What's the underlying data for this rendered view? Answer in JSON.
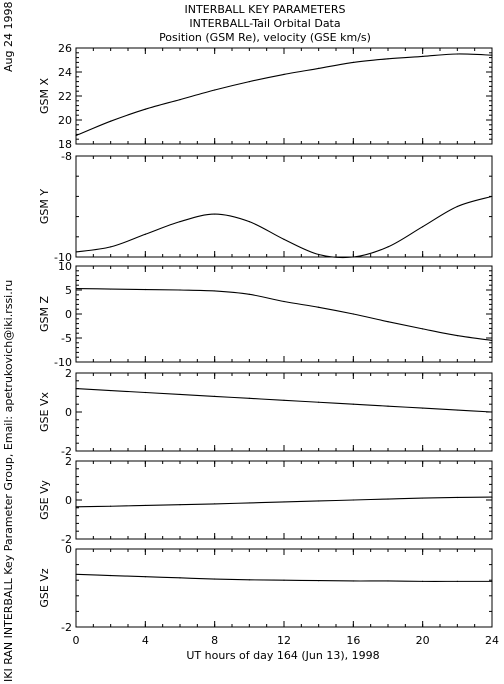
{
  "header": {
    "line1": "INTERBALL KEY PARAMETERS",
    "line2": "INTERBALL-Tail Orbital Data",
    "line3": "Position (GSM Re), velocity (GSE km/s)"
  },
  "side": {
    "date": "Aug 24 1998",
    "credit": "IKI RAN INTERBALL Key Parameter Group, Email: apetrukovich@iki.rssi.ru"
  },
  "chart_data": {
    "type": "line",
    "x": [
      0,
      2,
      4,
      6,
      8,
      10,
      12,
      14,
      16,
      18,
      20,
      22,
      24
    ],
    "xlim": [
      0,
      24
    ],
    "xticks": [
      "0",
      "4",
      "8",
      "12",
      "16",
      "20",
      "24"
    ],
    "xlabel": "UT hours of day 164 (Jun 13), 1998",
    "panels": [
      {
        "ylabel": "GSM X",
        "ylim": [
          18,
          26
        ],
        "yticks": [
          "18",
          "20",
          "22",
          "24",
          "26"
        ],
        "values": [
          18.7,
          19.9,
          20.9,
          21.7,
          22.5,
          23.2,
          23.8,
          24.3,
          24.8,
          25.1,
          25.3,
          25.5,
          25.4
        ]
      },
      {
        "ylabel": "GSM Y",
        "ylim": [
          -10,
          -8
        ],
        "yticks": [
          "-10",
          "-8"
        ],
        "values": [
          -9.9,
          -9.8,
          -9.55,
          -9.3,
          -9.15,
          -9.3,
          -9.65,
          -9.95,
          -10.0,
          -9.8,
          -9.4,
          -9.0,
          -8.8
        ]
      },
      {
        "ylabel": "GSM Z",
        "ylim": [
          -10,
          10
        ],
        "yticks": [
          "-10",
          "-5",
          "0",
          "5",
          "10"
        ],
        "values": [
          5.3,
          5.2,
          5.1,
          5.0,
          4.8,
          4.1,
          2.6,
          1.4,
          0.0,
          -1.6,
          -3.1,
          -4.5,
          -5.5
        ]
      },
      {
        "ylabel": "GSE Vx",
        "ylim": [
          -2,
          2
        ],
        "yticks": [
          "-2",
          "0",
          "2"
        ],
        "values": [
          1.2,
          1.1,
          1.0,
          0.9,
          0.8,
          0.7,
          0.6,
          0.5,
          0.4,
          0.3,
          0.2,
          0.1,
          0.0
        ]
      },
      {
        "ylabel": "GSE Vy",
        "ylim": [
          -2,
          2
        ],
        "yticks": [
          "-2",
          "0",
          "2"
        ],
        "values": [
          -0.35,
          -0.32,
          -0.28,
          -0.24,
          -0.2,
          -0.15,
          -0.1,
          -0.05,
          0.0,
          0.05,
          0.1,
          0.13,
          0.15
        ]
      },
      {
        "ylabel": "GSE Vz",
        "ylim": [
          -2,
          0
        ],
        "yticks": [
          "-2",
          "0"
        ],
        "values": [
          -0.65,
          -0.68,
          -0.71,
          -0.74,
          -0.77,
          -0.79,
          -0.8,
          -0.81,
          -0.82,
          -0.82,
          -0.83,
          -0.83,
          -0.83
        ]
      }
    ]
  }
}
